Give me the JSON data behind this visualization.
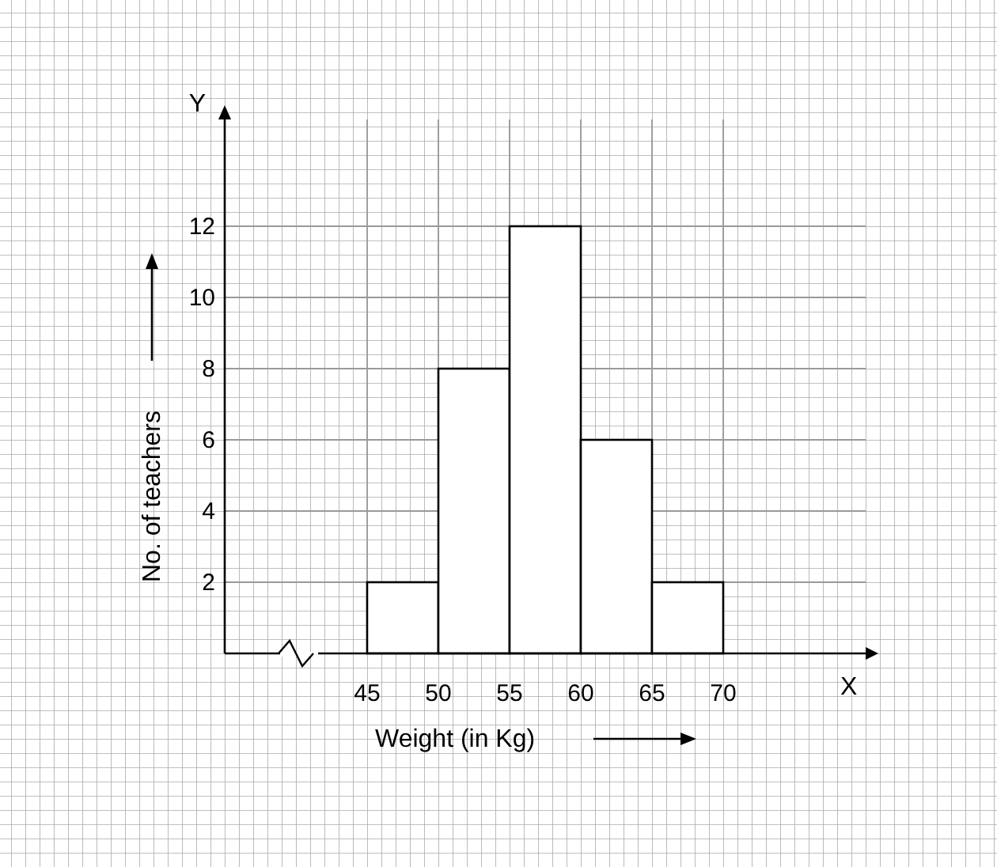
{
  "chart_data": {
    "type": "histogram",
    "xlabel": "Weight (in Kg)",
    "ylabel": "No. of teachers",
    "bins": [
      45,
      50,
      55,
      60,
      65,
      70
    ],
    "values": [
      2,
      8,
      12,
      6,
      2
    ],
    "color": "#ffffff",
    "xlim": [
      35,
      80
    ],
    "xticks": [
      45,
      50,
      55,
      60,
      65,
      70
    ],
    "ylim": [
      0,
      15
    ],
    "yticks": [
      2,
      4,
      6,
      8,
      10,
      12
    ],
    "grid": true,
    "annotations": [
      "Y",
      "X"
    ]
  }
}
